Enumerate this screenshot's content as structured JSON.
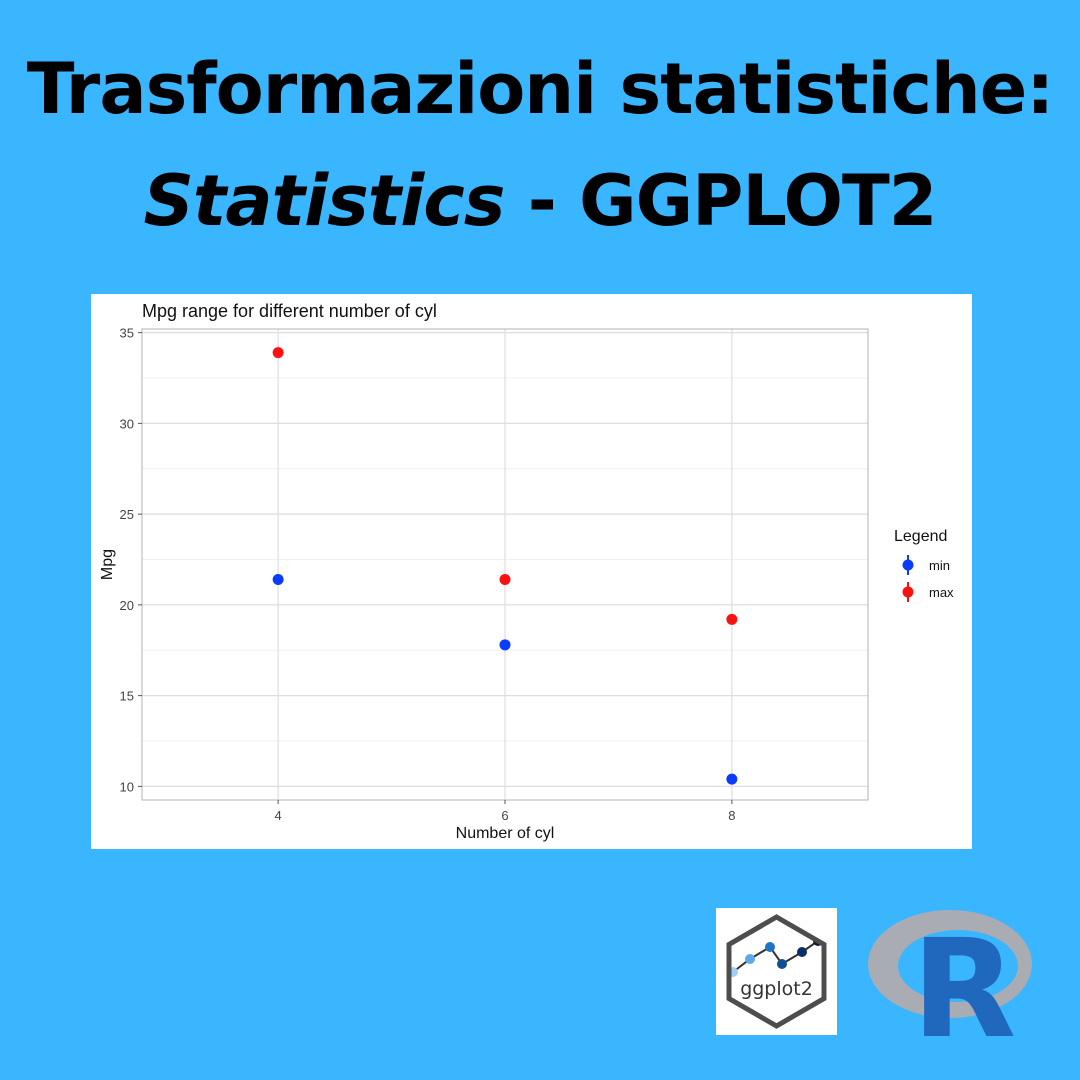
{
  "header": {
    "title_line1": "Trasformazioni statistiche:",
    "title_line2_italic": "Statistics",
    "title_line2_rest": " - GGPLOT2"
  },
  "chart_data": {
    "type": "scatter",
    "title": "Mpg range for different number of cyl",
    "xlabel": "Number of cyl",
    "ylabel": "Mpg",
    "x_ticks": [
      4,
      6,
      8
    ],
    "y_ticks": [
      10,
      15,
      20,
      25,
      30,
      35
    ],
    "xlim": [
      2.8,
      9.2
    ],
    "ylim": [
      9.25,
      35.2
    ],
    "grid": true,
    "legend": {
      "title": "Legend",
      "placement": "right",
      "items": [
        {
          "label": "min",
          "color": "#0A3CFF"
        },
        {
          "label": "max",
          "color": "#FF1010"
        }
      ]
    },
    "series": [
      {
        "name": "min",
        "color": "#0A3CFF",
        "points": [
          {
            "x": 4,
            "y": 21.4
          },
          {
            "x": 6,
            "y": 17.8
          },
          {
            "x": 8,
            "y": 10.4
          }
        ]
      },
      {
        "name": "max",
        "color": "#FF1010",
        "points": [
          {
            "x": 4,
            "y": 33.9
          },
          {
            "x": 6,
            "y": 21.4
          },
          {
            "x": 8,
            "y": 19.2
          }
        ]
      }
    ]
  },
  "logos": {
    "ggplot2_text": "ggplot2",
    "r_text": "R"
  }
}
